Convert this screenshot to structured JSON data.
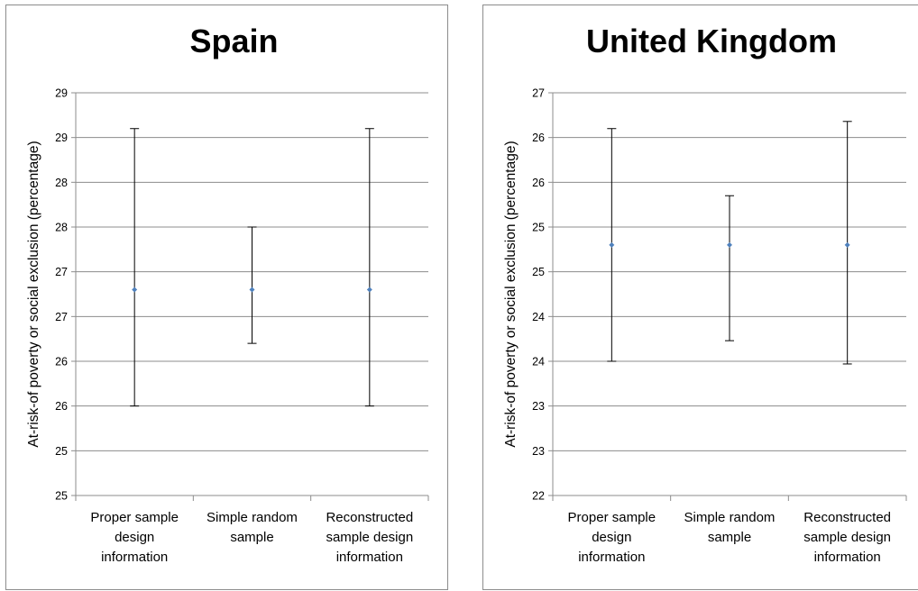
{
  "chart_data": [
    {
      "type": "scatter",
      "title": "Spain",
      "xlabel": "",
      "ylabel": "At-risk-of poverty or social exclusion (percentage)",
      "yticks": [
        "29",
        "29",
        "28",
        "28",
        "27",
        "27",
        "26",
        "26",
        "25",
        "25"
      ],
      "ylim": [
        25,
        29.5
      ],
      "categories": [
        [
          "Proper sample",
          "design",
          "information"
        ],
        [
          "Simple random",
          "sample"
        ],
        [
          "Reconstructed",
          "sample design",
          "information"
        ]
      ],
      "series": [
        {
          "values": [
            27.3,
            27.3,
            27.3
          ],
          "error_low": [
            26.0,
            26.7,
            26.0
          ],
          "error_high": [
            29.1,
            28.0,
            29.1
          ]
        }
      ],
      "grid": true,
      "point_color": "#4f81bd"
    },
    {
      "type": "scatter",
      "title": "United Kingdom",
      "xlabel": "",
      "ylabel": "At-risk-of poverty or social exclusion (percentage)",
      "yticks": [
        "27",
        "26",
        "26",
        "25",
        "25",
        "24",
        "24",
        "23",
        "23",
        "22"
      ],
      "ylim": [
        22,
        26.5
      ],
      "categories": [
        [
          "Proper sample",
          "design",
          "information"
        ],
        [
          "Simple random",
          "sample"
        ],
        [
          "Reconstructed",
          "sample design",
          "information"
        ]
      ],
      "series": [
        {
          "values": [
            24.8,
            24.8,
            24.8
          ],
          "error_low": [
            23.5,
            23.73,
            23.47
          ],
          "error_high": [
            26.1,
            25.35,
            26.18
          ]
        }
      ],
      "grid": true,
      "point_color": "#4f81bd"
    }
  ]
}
